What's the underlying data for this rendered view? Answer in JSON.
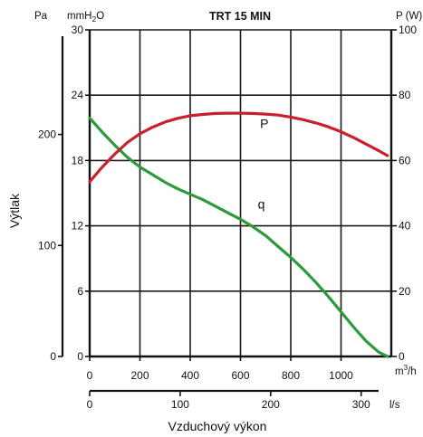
{
  "chart_data": {
    "type": "line",
    "title": "TRT 15 MIN",
    "ylabel": "Výtlak",
    "xlabel": "Vzduchový výkon",
    "units": {
      "pa": "Pa",
      "mmh2o_prefix": "mmH",
      "mmh2o_sub": "2",
      "mmh2o_suffix": "O",
      "power": "P (W)",
      "m3h_base": "m",
      "m3h_sup": "3",
      "m3h_tail": "/h",
      "ls": "l/s"
    },
    "axes": {
      "x_m3h": {
        "range": [
          0,
          1200
        ],
        "ticks": [
          "0",
          "200",
          "400",
          "600",
          "800",
          "1000"
        ]
      },
      "x_ls": {
        "range": [
          0,
          333.3
        ],
        "ticks": [
          "0",
          "100",
          "200",
          "300"
        ]
      },
      "y_mmh2o": {
        "range": [
          0,
          30
        ],
        "ticks": [
          "0",
          "6",
          "12",
          "18",
          "24",
          "30"
        ]
      },
      "y_pa": {
        "range": [
          0,
          294.2
        ],
        "ticks": [
          "0",
          "100",
          "200"
        ]
      },
      "y_power": {
        "range": [
          0,
          100
        ],
        "ticks": [
          "0",
          "20",
          "40",
          "60",
          "80",
          "100"
        ]
      }
    },
    "grid": true,
    "series": [
      {
        "name": "q",
        "axis": "y_mmh2o",
        "color": "#2e9a3a",
        "x": [
          0,
          50,
          100,
          150,
          200,
          250,
          300,
          350,
          400,
          450,
          500,
          550,
          600,
          650,
          700,
          750,
          800,
          850,
          900,
          950,
          1000,
          1050,
          1100,
          1150,
          1185
        ],
        "y": [
          21.9,
          20.6,
          19.4,
          18.3,
          17.4,
          16.7,
          16.0,
          15.4,
          14.9,
          14.4,
          13.8,
          13.2,
          12.6,
          11.9,
          11.1,
          10.1,
          9.1,
          8.0,
          6.8,
          5.5,
          4.1,
          2.7,
          1.4,
          0.4,
          0
        ]
      },
      {
        "name": "P",
        "axis": "y_power",
        "color": "#c8202d",
        "x": [
          0,
          50,
          100,
          150,
          200,
          250,
          300,
          350,
          400,
          450,
          500,
          550,
          600,
          650,
          700,
          750,
          800,
          850,
          900,
          950,
          1000,
          1050,
          1100,
          1150,
          1185
        ],
        "y": [
          53.5,
          58.0,
          62.0,
          65.5,
          68.2,
          70.2,
          71.8,
          72.9,
          73.7,
          74.1,
          74.4,
          74.5,
          74.5,
          74.4,
          74.2,
          73.9,
          73.3,
          72.5,
          71.5,
          70.3,
          68.8,
          67.0,
          65.0,
          63.0,
          61.5
        ]
      }
    ]
  }
}
